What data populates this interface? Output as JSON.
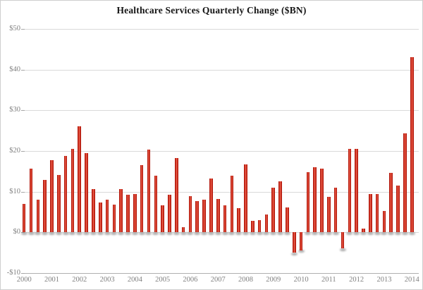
{
  "chart_data": {
    "type": "bar",
    "title": "Healthcare Services Quarterly Change ($BN)",
    "xlabel": "",
    "ylabel": "",
    "ylim": [
      -10,
      50
    ],
    "grid": true,
    "legend_position": "none",
    "ytick_labels": [
      "$50",
      "$40",
      "$30",
      "$20",
      "$10",
      "$0",
      "-$10"
    ],
    "ytick_values": [
      50,
      40,
      30,
      20,
      10,
      0,
      -10
    ],
    "xtick_labels": [
      "2000",
      "2001",
      "2002",
      "2003",
      "2004",
      "2005",
      "2006",
      "2007",
      "2008",
      "2009",
      "2010",
      "2011",
      "2012",
      "2013",
      "2014"
    ],
    "categories": [
      "2000 Q1",
      "2000 Q2",
      "2000 Q3",
      "2000 Q4",
      "2001 Q1",
      "2001 Q2",
      "2001 Q3",
      "2001 Q4",
      "2002 Q1",
      "2002 Q2",
      "2002 Q3",
      "2002 Q4",
      "2003 Q1",
      "2003 Q2",
      "2003 Q3",
      "2003 Q4",
      "2004 Q1",
      "2004 Q2",
      "2004 Q3",
      "2004 Q4",
      "2005 Q1",
      "2005 Q2",
      "2005 Q3",
      "2005 Q4",
      "2006 Q1",
      "2006 Q2",
      "2006 Q3",
      "2006 Q4",
      "2007 Q1",
      "2007 Q2",
      "2007 Q3",
      "2007 Q4",
      "2008 Q1",
      "2008 Q2",
      "2008 Q3",
      "2008 Q4",
      "2009 Q1",
      "2009 Q2",
      "2009 Q3",
      "2009 Q4",
      "2010 Q1",
      "2010 Q2",
      "2010 Q3",
      "2010 Q4",
      "2011 Q1",
      "2011 Q2",
      "2011 Q3",
      "2011 Q4",
      "2012 Q1",
      "2012 Q2",
      "2012 Q3",
      "2012 Q4",
      "2013 Q1",
      "2013 Q2",
      "2013 Q3",
      "2013 Q4",
      "2014 Q1"
    ],
    "values": [
      7.0,
      15.7,
      8.1,
      12.9,
      17.7,
      14.1,
      18.7,
      20.6,
      26.0,
      19.4,
      10.7,
      7.3,
      8.1,
      6.9,
      10.6,
      9.3,
      9.4,
      16.6,
      20.3,
      14.0,
      6.6,
      9.3,
      18.3,
      1.3,
      8.9,
      7.6,
      8.1,
      13.2,
      8.2,
      6.6,
      14.0,
      6.0,
      16.7,
      2.8,
      3.0,
      4.4,
      11.0,
      12.5,
      6.1,
      -5.0,
      -4.4,
      14.8,
      16.0,
      15.7,
      8.7,
      11.0,
      -4.0,
      20.5,
      20.5,
      0.9,
      9.5,
      9.5,
      5.3,
      14.6,
      11.5,
      24.3,
      43.0
    ]
  },
  "colors": {
    "background": "#ffffff",
    "border": "#cfcfcf",
    "gridline": "#d9d9d9",
    "axis_line": "#b0b0b0",
    "tick_dash": "#a6a6a6",
    "axis_label_text": "#7f7f7f",
    "title_text": "#141414",
    "bar_edge": "#a81309",
    "bar_body": "#c52517",
    "bar_highlight": "#ee6a55",
    "bar_shadow": "rgba(100,100,100,0.55)"
  }
}
